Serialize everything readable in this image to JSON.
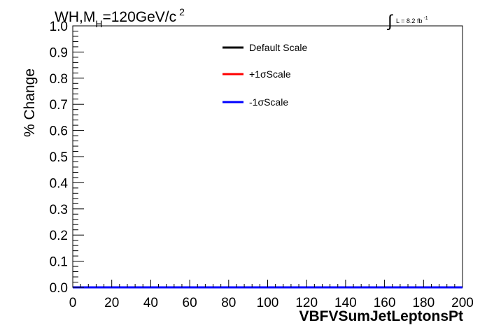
{
  "chart_data": {
    "type": "line",
    "title": {
      "main": "WH,M",
      "subscript": "H",
      "value": "=120GeV/c",
      "superscript": "2"
    },
    "lumi": {
      "integral_symbol": "∫",
      "text": "L = 8.2 fb",
      "superscript": "-1"
    },
    "xlabel": "VBFVSumJetLeptonsPt",
    "ylabel": "% Change",
    "xlim": [
      0,
      200
    ],
    "ylim": [
      0,
      1.0
    ],
    "xticks": [
      "0",
      "20",
      "40",
      "60",
      "80",
      "100",
      "120",
      "140",
      "160",
      "180",
      "200"
    ],
    "yticks": [
      "0.0",
      "0.1",
      "0.2",
      "0.3",
      "0.4",
      "0.5",
      "0.6",
      "0.7",
      "0.8",
      "0.9",
      "1.0"
    ],
    "grid": false,
    "legend_position": "top-center",
    "series": [
      {
        "name": "Default Scale",
        "color": "#000000",
        "x": [
          0,
          200
        ],
        "y": [
          0,
          0
        ]
      },
      {
        "name": "+1σScale",
        "color": "#ff0000",
        "x": [
          0,
          200
        ],
        "y": [
          0,
          0
        ]
      },
      {
        "name": "-1σScale",
        "color": "#0000ff",
        "x": [
          0,
          200
        ],
        "y": [
          0,
          0
        ]
      }
    ]
  }
}
